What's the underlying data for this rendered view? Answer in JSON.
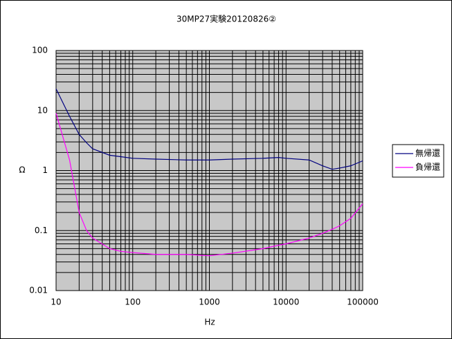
{
  "chart_data": {
    "type": "line",
    "title": "30MP27実験20120826②",
    "x_label": "Hz",
    "y_label": "Ω",
    "x": [
      10,
      15,
      20,
      25,
      30,
      50,
      70,
      100,
      200,
      500,
      1000,
      2000,
      5000,
      8000,
      10000,
      20000,
      30000,
      40000,
      50000,
      70000,
      100000
    ],
    "series": [
      {
        "name": "無帰還",
        "color": "#000080",
        "values": [
          23,
          8,
          4,
          2.9,
          2.3,
          1.8,
          1.7,
          1.6,
          1.55,
          1.5,
          1.5,
          1.55,
          1.6,
          1.65,
          1.6,
          1.5,
          1.2,
          1.05,
          1.1,
          1.2,
          1.45
        ]
      },
      {
        "name": "負帰還",
        "color": "#ff00ff",
        "values": [
          9,
          1.5,
          0.2,
          0.1,
          0.075,
          0.05,
          0.045,
          0.043,
          0.04,
          0.04,
          0.038,
          0.042,
          0.05,
          0.057,
          0.06,
          0.075,
          0.09,
          0.105,
          0.12,
          0.16,
          0.28
        ]
      }
    ],
    "xlim": [
      10,
      100000
    ],
    "ylim": [
      0.01,
      100
    ],
    "xticks": [
      10,
      100,
      1000,
      10000,
      100000
    ],
    "yticks": [
      0.01,
      0.1,
      1,
      10,
      100
    ],
    "xlog": true,
    "ylog": true,
    "grid": true,
    "minor_grid": true,
    "legend": "right"
  }
}
